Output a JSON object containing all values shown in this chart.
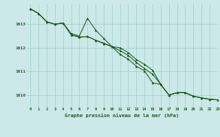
{
  "title": "Graphe pression niveau de la mer (hPa)",
  "background_color": "#cce8e8",
  "grid_color": "#99cccc",
  "line_color": "#1a5c1a",
  "marker_color": "#1a5c1a",
  "xlim": [
    -0.5,
    23
  ],
  "ylim": [
    1009.5,
    1013.85
  ],
  "yticks": [
    1010,
    1011,
    1012,
    1013
  ],
  "xticks": [
    0,
    1,
    2,
    3,
    4,
    5,
    6,
    7,
    8,
    9,
    10,
    11,
    12,
    13,
    14,
    15,
    16,
    17,
    18,
    19,
    20,
    21,
    22,
    23
  ],
  "series1": [
    1013.65,
    1013.45,
    1013.1,
    1013.0,
    1013.05,
    1012.6,
    1012.5,
    1013.25,
    1012.75,
    1012.4,
    1012.05,
    1012.0,
    1011.8,
    1011.5,
    1011.3,
    1011.05,
    1010.45,
    1010.0,
    1010.1,
    1010.1,
    1009.95,
    1009.88,
    1009.82,
    1009.8
  ],
  "series2": [
    1013.65,
    1013.45,
    1013.1,
    1013.0,
    1013.05,
    1012.55,
    1012.45,
    1012.48,
    1012.32,
    1012.2,
    1012.05,
    1011.88,
    1011.68,
    1011.38,
    1011.12,
    1010.88,
    1010.45,
    1010.0,
    1010.1,
    1010.1,
    1009.95,
    1009.88,
    1009.82,
    1009.8
  ],
  "series3": [
    1013.65,
    1013.45,
    1013.1,
    1013.0,
    1013.05,
    1012.55,
    1012.45,
    1012.48,
    1012.32,
    1012.18,
    1012.05,
    1011.72,
    1011.52,
    1011.22,
    1011.02,
    1010.52,
    1010.45,
    1010.0,
    1010.1,
    1010.1,
    1009.95,
    1009.88,
    1009.82,
    1009.8
  ]
}
